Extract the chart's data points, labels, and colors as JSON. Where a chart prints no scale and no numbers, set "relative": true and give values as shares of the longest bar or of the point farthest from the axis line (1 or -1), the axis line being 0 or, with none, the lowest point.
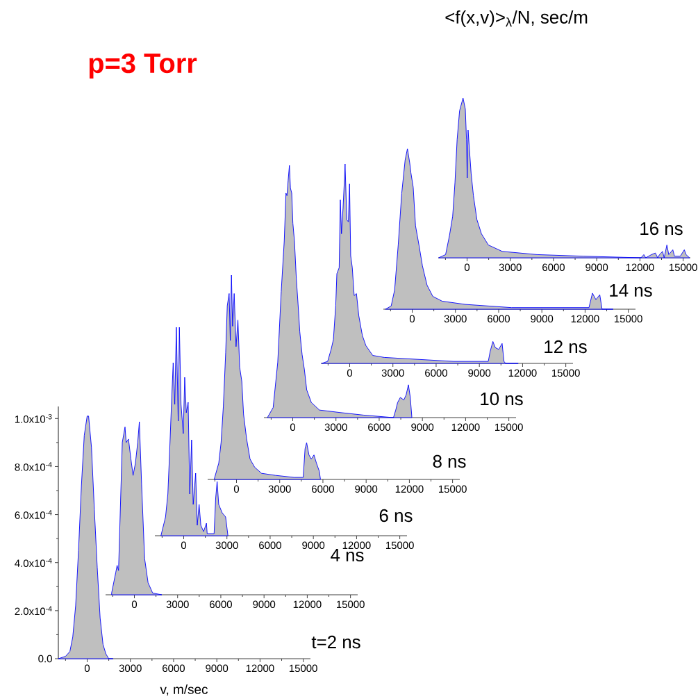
{
  "chart_data": [
    {
      "type": "area",
      "title": "t=2 ns",
      "xlabel": "v, m/sec",
      "annotations": [
        "p=3 Torr"
      ],
      "xlim": [
        -2000,
        15500
      ],
      "xticks": [
        0,
        3000,
        6000,
        9000,
        12000,
        15000
      ],
      "ylim": [
        0,
        0.00105
      ],
      "yticks": [
        {
          "value": 0,
          "label": "0.0"
        },
        {
          "value": 0.0002,
          "label": "2.0x10$^{-4}$"
        },
        {
          "value": 0.0004,
          "label": "4.0x10$^{-4}$"
        },
        {
          "value": 0.0006,
          "label": "6.0x10$^{-4}$"
        },
        {
          "value": 0.0008,
          "label": "8.0x10$^{-4}$"
        },
        {
          "value": 0.001,
          "label": "1.0x10$^{-3}$"
        }
      ],
      "series": [
        {
          "color": "#0000ff",
          "x": [
            -2000,
            -1500,
            -1200,
            -1000,
            -800,
            -600,
            -400,
            -200,
            0,
            100,
            300,
            500,
            700,
            900,
            1100,
            1300,
            1500,
            1800
          ],
          "values": [
            0,
            1e-05,
            3e-05,
            9e-05,
            0.00022,
            0.00045,
            0.00072,
            0.00093,
            0.00101,
            0.00101,
            0.00088,
            0.00062,
            0.00038,
            0.00017,
            6e-05,
            2e-05,
            0,
            0
          ]
        }
      ]
    },
    {
      "type": "area",
      "title": "4 ns",
      "relative": true,
      "xlim": [
        -2000,
        15500
      ],
      "xticks": [
        0,
        3000,
        6000,
        9000,
        12000,
        15000
      ],
      "series": [
        {
          "color": "#0000ff",
          "x": [
            -1580,
            -1290,
            -1200,
            -1100,
            -840,
            -650,
            -570,
            -410,
            -250,
            -90,
            70,
            230,
            345,
            500,
            710,
            950,
            1270,
            1900
          ],
          "values": [
            0.01,
            0.13,
            0.17,
            0.14,
            0.88,
            0.97,
            0.88,
            0.9,
            0.79,
            0.69,
            0.76,
            0.88,
            1,
            0.64,
            0.21,
            0.07,
            0.01,
            0
          ]
        }
      ]
    },
    {
      "type": "area",
      "title": "6 ns",
      "relative": true,
      "xlim": [
        -2000,
        15500
      ],
      "xticks": [
        0,
        3000,
        6000,
        9000,
        12000,
        15000
      ],
      "series": [
        {
          "color": "#0000ff",
          "x": [
            -1580,
            -1260,
            -1100,
            -990,
            -860,
            -730,
            -620,
            -510,
            -380,
            -300,
            -185,
            -30,
            70,
            180,
            310,
            420,
            550,
            660,
            830,
            940,
            1070,
            1190,
            1380,
            1580,
            1630,
            2110,
            2220,
            2320,
            2430,
            2670,
            2910,
            3070
          ],
          "values": [
            0,
            0.09,
            0.2,
            0.38,
            0.61,
            0.83,
            0.63,
            1,
            0.55,
            1,
            0.63,
            0.49,
            0.76,
            0.59,
            0.64,
            0.2,
            0.46,
            0.15,
            0.3,
            0.05,
            0.15,
            0.05,
            0.02,
            0.06,
            0.01,
            0.01,
            0.18,
            0.26,
            0.15,
            0.11,
            0.09,
            0
          ]
        }
      ]
    },
    {
      "type": "area",
      "title": "8 ns",
      "relative": true,
      "xlim": [
        -2000,
        15500
      ],
      "xticks": [
        0,
        3000,
        6000,
        9000,
        12000,
        15000
      ],
      "series": [
        {
          "color": "#0000ff",
          "x": [
            -1550,
            -1230,
            -1070,
            -910,
            -750,
            -640,
            -510,
            -430,
            -350,
            -270,
            -160,
            -30,
            100,
            220,
            370,
            490,
            700,
            940,
            1260,
            1740,
            2700,
            4000,
            4630,
            4760,
            4870,
            5030,
            5190,
            5380,
            5550,
            5750,
            5830
          ],
          "values": [
            0,
            0.08,
            0.18,
            0.36,
            0.62,
            0.85,
            0.91,
            0.68,
            1,
            0.75,
            0.91,
            0.65,
            0.78,
            0.55,
            0.48,
            0.32,
            0.2,
            0.1,
            0.06,
            0.03,
            0.02,
            0.01,
            0.01,
            0.15,
            0.18,
            0.12,
            0.1,
            0.12,
            0.08,
            0.04,
            0
          ]
        }
      ]
    },
    {
      "type": "area",
      "title": "10 ns",
      "relative": true,
      "xlim": [
        -2000,
        15500
      ],
      "xticks": [
        0,
        3000,
        6000,
        9000,
        12000,
        15000
      ],
      "series": [
        {
          "color": "#0000ff",
          "x": [
            -1760,
            -1360,
            -1040,
            -800,
            -590,
            -470,
            -400,
            -320,
            -230,
            -160,
            -70,
            10,
            120,
            250,
            370,
            490,
            650,
            810,
            970,
            1290,
            1850,
            3300,
            4900,
            6990,
            7150,
            7280,
            7470,
            7710,
            7870,
            8030,
            8160,
            8270
          ],
          "values": [
            0,
            0.04,
            0.22,
            0.5,
            0.7,
            0.89,
            0.88,
            0.94,
            1,
            0.91,
            0.89,
            0.77,
            0.7,
            0.55,
            0.45,
            0.34,
            0.25,
            0.19,
            0.11,
            0.06,
            0.03,
            0.02,
            0.01,
            0,
            0.03,
            0.06,
            0.08,
            0.07,
            0.09,
            0.13,
            0.08,
            0
          ]
        }
      ]
    },
    {
      "type": "area",
      "title": "12 ns",
      "relative": true,
      "xlim": [
        -2000,
        15500
      ],
      "xticks": [
        0,
        3000,
        6000,
        9000,
        12000,
        15000
      ],
      "series": [
        {
          "color": "#0000ff",
          "x": [
            -1940,
            -1530,
            -1290,
            -1130,
            -970,
            -890,
            -730,
            -650,
            -570,
            -460,
            -360,
            -320,
            -200,
            -90,
            -10,
            70,
            180,
            310,
            470,
            630,
            880,
            1120,
            1600,
            2400,
            4800,
            7210,
            9620,
            9750,
            9940,
            10100,
            10340,
            10580,
            10710,
            10820,
            11700
          ],
          "values": [
            0,
            0.01,
            0.07,
            0.12,
            0.29,
            0.45,
            0.48,
            0.82,
            0.65,
            0.78,
            0.93,
            1,
            0.72,
            0.71,
            0.9,
            0.54,
            0.48,
            0.34,
            0.35,
            0.24,
            0.14,
            0.09,
            0.04,
            0.03,
            0.02,
            0.01,
            0.01,
            0.06,
            0.11,
            0.08,
            0.07,
            0.1,
            0.01,
            0,
            0
          ]
        }
      ]
    },
    {
      "type": "area",
      "title": "14 ns",
      "relative": true,
      "xlim": [
        -2000,
        15500
      ],
      "xticks": [
        0,
        3000,
        6000,
        9000,
        12000,
        15000
      ],
      "series": [
        {
          "color": "#0000ff",
          "x": [
            -1860,
            -1460,
            -1220,
            -970,
            -730,
            -490,
            -330,
            -170,
            -90,
            70,
            230,
            470,
            710,
            1030,
            1430,
            2080,
            3680,
            6890,
            10100,
            12270,
            12510,
            12750,
            13020,
            13180,
            13950
          ],
          "values": [
            0,
            0.02,
            0.12,
            0.4,
            0.72,
            0.93,
            1,
            0.91,
            0.85,
            0.76,
            0.52,
            0.4,
            0.27,
            0.15,
            0.08,
            0.05,
            0.03,
            0.01,
            0.01,
            0.01,
            0.1,
            0.06,
            0.09,
            0,
            0
          ]
        }
      ]
    },
    {
      "type": "area",
      "title": "16 ns",
      "ylabel": "<f(x,v)>$_{λ}$/N, sec/m",
      "relative": true,
      "xlim": [
        -2000,
        15500
      ],
      "xticks": [
        0,
        3000,
        6000,
        9000,
        12000,
        15000
      ],
      "series": [
        {
          "color": "#0000ff",
          "x": [
            -1970,
            -1490,
            -1220,
            -1000,
            -840,
            -690,
            -520,
            -280,
            -120,
            -40,
            10,
            70,
            280,
            440,
            680,
            1000,
            1480,
            2440,
            4850,
            8060,
            12070,
            12270,
            12400,
            12800,
            13070,
            13230,
            13360,
            13570,
            13680,
            13870,
            14000,
            14280,
            14400,
            14800,
            15080,
            15200,
            15440
          ],
          "values": [
            0,
            0.02,
            0.14,
            0.26,
            0.47,
            0.74,
            0.92,
            1,
            0.93,
            0.74,
            0.5,
            0.8,
            0.53,
            0.39,
            0.24,
            0.15,
            0.08,
            0.04,
            0.02,
            0.01,
            0,
            0.02,
            0,
            0.02,
            0.03,
            0,
            0.02,
            0.04,
            0,
            0.08,
            0.02,
            0.05,
            0.01,
            0.01,
            0.05,
            0.02,
            0
          ]
        }
      ]
    }
  ]
}
